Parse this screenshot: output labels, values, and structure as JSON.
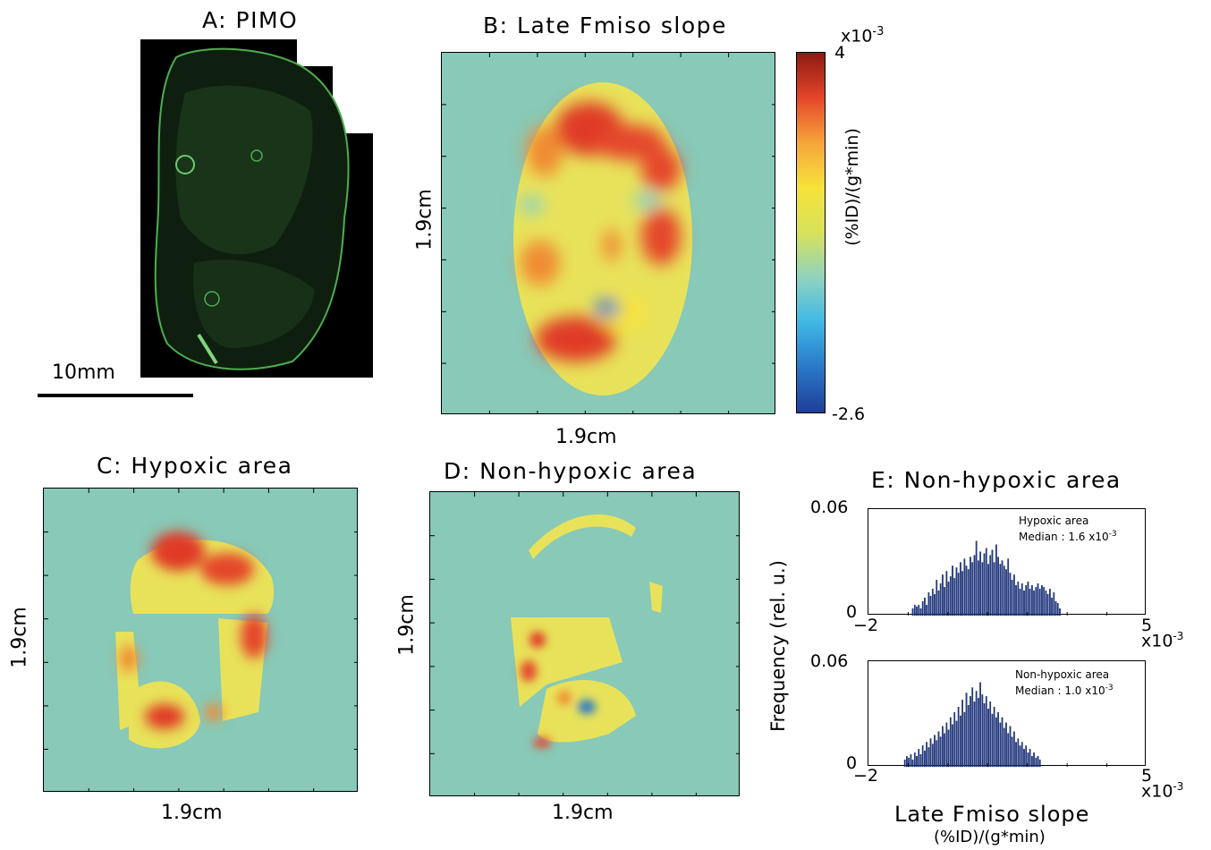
{
  "panel_a": {
    "title": "A: PIMO",
    "scale_bar_label": "10mm"
  },
  "panel_b": {
    "title": "B: Late Fmiso slope",
    "x_label": "1.9cm",
    "y_label": "1.9cm"
  },
  "colorbar": {
    "multiplier": "x10",
    "multiplier_exp": "-3",
    "max_label": "4",
    "min_label": "-2.6",
    "label": "(%ID)/(g*min)",
    "colors": [
      "#1f3f99",
      "#2a78c8",
      "#3fb8e6",
      "#8fd3c0",
      "#d7e25a",
      "#f6e23a",
      "#f6a53a",
      "#e5462a",
      "#8b1a12"
    ]
  },
  "panel_c": {
    "title": "C: Hypoxic area",
    "x_label": "1.9cm",
    "y_label": "1.9cm"
  },
  "panel_d": {
    "title": "D: Non-hypoxic area",
    "x_label": "1.9cm",
    "y_label": "1.9cm"
  },
  "panel_e": {
    "title": "E: Non-hypoxic area",
    "y_label": "Frequency (rel. u.)",
    "x_label": "Late Fmiso slope",
    "x_unit": "(%ID)/(g*min)",
    "bar_color": "#1f3a8a"
  },
  "chart_data": [
    {
      "type": "bar",
      "name": "hypoxic-histogram",
      "legend_line1": "Hypoxic area",
      "legend_line2": "Median : 1.6  x10",
      "legend_exp": "-3",
      "xlim": [
        -2,
        5
      ],
      "ylim": [
        0,
        0.06
      ],
      "x_tick_labels": [
        "−2",
        "5"
      ],
      "y_tick_labels": [
        "0.06",
        "0"
      ],
      "x_multiplier": "x10",
      "x_multiplier_exp": "-3",
      "bin_start": -0.9,
      "bin_width": 0.05,
      "values": [
        0.004,
        0.006,
        0.005,
        0.006,
        0.004,
        0.008,
        0.01,
        0.006,
        0.013,
        0.011,
        0.015,
        0.012,
        0.02,
        0.014,
        0.018,
        0.023,
        0.016,
        0.025,
        0.019,
        0.022,
        0.028,
        0.021,
        0.027,
        0.024,
        0.03,
        0.025,
        0.032,
        0.028,
        0.026,
        0.033,
        0.03,
        0.034,
        0.042,
        0.031,
        0.036,
        0.03,
        0.035,
        0.038,
        0.029,
        0.034,
        0.037,
        0.03,
        0.04,
        0.033,
        0.029,
        0.031,
        0.028,
        0.026,
        0.032,
        0.024,
        0.02,
        0.023,
        0.017,
        0.019,
        0.015,
        0.018,
        0.014,
        0.017,
        0.019,
        0.015,
        0.017,
        0.014,
        0.016,
        0.018,
        0.015,
        0.017,
        0.016,
        0.014,
        0.012,
        0.015,
        0.01,
        0.013,
        0.008,
        0.007,
        0.004
      ]
    },
    {
      "type": "bar",
      "name": "non-hypoxic-histogram",
      "legend_line1": "Non-hypoxic area",
      "legend_line2": "Median : 1.0  x10",
      "legend_exp": "-3",
      "xlim": [
        -2,
        5
      ],
      "ylim": [
        0,
        0.06
      ],
      "x_tick_labels": [
        "−2",
        "5"
      ],
      "y_tick_labels": [
        "0.06",
        "0"
      ],
      "x_multiplier": "x10",
      "x_multiplier_exp": "-3",
      "bin_start": -1.1,
      "bin_width": 0.05,
      "values": [
        0.004,
        0.006,
        0.005,
        0.007,
        0.004,
        0.008,
        0.006,
        0.01,
        0.007,
        0.012,
        0.009,
        0.014,
        0.011,
        0.016,
        0.013,
        0.018,
        0.015,
        0.02,
        0.017,
        0.023,
        0.019,
        0.025,
        0.021,
        0.028,
        0.024,
        0.031,
        0.026,
        0.034,
        0.029,
        0.038,
        0.031,
        0.042,
        0.035,
        0.04,
        0.045,
        0.037,
        0.043,
        0.039,
        0.048,
        0.041,
        0.036,
        0.04,
        0.033,
        0.037,
        0.03,
        0.034,
        0.028,
        0.031,
        0.025,
        0.028,
        0.022,
        0.025,
        0.019,
        0.023,
        0.017,
        0.02,
        0.014,
        0.016,
        0.012,
        0.014,
        0.01,
        0.012,
        0.008,
        0.01,
        0.006,
        0.008,
        0.005,
        0.006,
        0.004
      ]
    }
  ]
}
